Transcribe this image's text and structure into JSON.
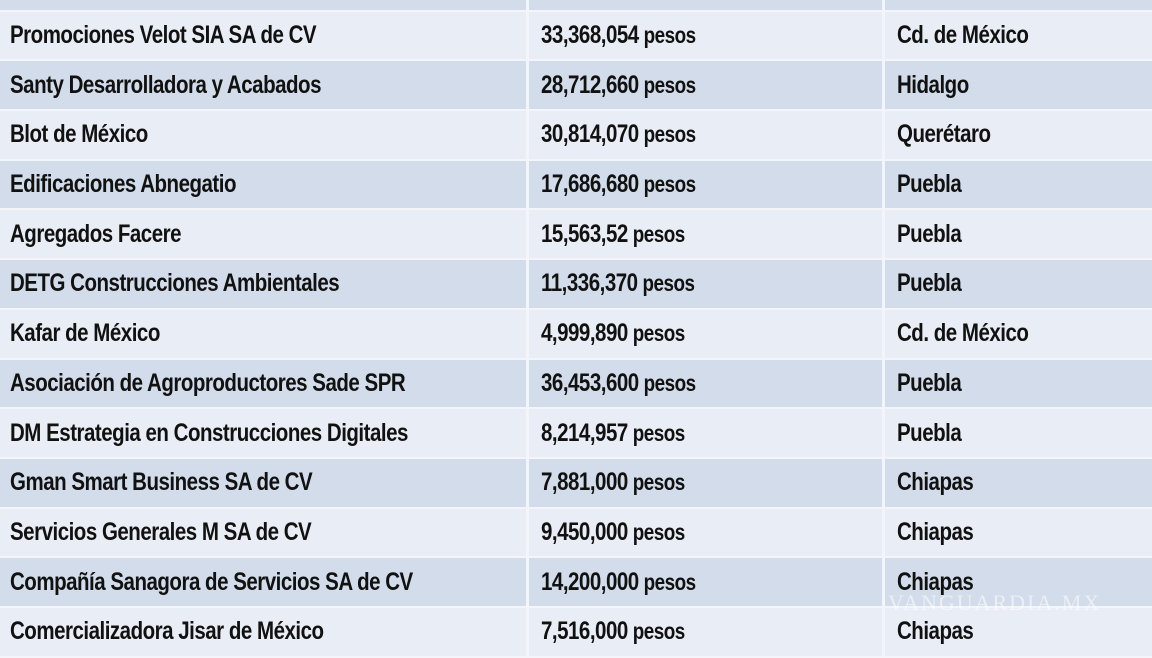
{
  "table": {
    "partial_top_row": {
      "company": "",
      "amount": "",
      "state": ""
    },
    "rows": [
      {
        "company": "Promociones Velot SIA SA de CV",
        "amount": "33,368,054",
        "unit": "pesos",
        "state": "Cd. de México"
      },
      {
        "company": "Santy Desarrolladora y Acabados",
        "amount": "28,712,660",
        "unit": "pesos",
        "state": "Hidalgo"
      },
      {
        "company": "Blot de México",
        "amount": "30,814,070",
        "unit": "pesos",
        "state": "Querétaro"
      },
      {
        "company": "Edificaciones Abnegatio",
        "amount": "17,686,680",
        "unit": "pesos",
        "state": "Puebla"
      },
      {
        "company": "Agregados Facere",
        "amount": "15,563,52",
        "unit": "pesos",
        "state": "Puebla"
      },
      {
        "company": "DETG Construcciones Ambientales",
        "amount": "11,336,370",
        "unit": "pesos",
        "state": "Puebla"
      },
      {
        "company": "Kafar de México",
        "amount": "4,999,890",
        "unit": "pesos",
        "state": "Cd. de México"
      },
      {
        "company": "Asociación de Agroproductores Sade SPR",
        "amount": "36,453,600",
        "unit": "pesos",
        "state": "Puebla"
      },
      {
        "company": "DM Estrategia en Construcciones Digitales",
        "amount": "8,214,957",
        "unit": "pesos",
        "state": "Puebla"
      },
      {
        "company": "Gman Smart Business SA de CV",
        "amount": "7,881,000",
        "unit": "pesos",
        "state": "Chiapas"
      },
      {
        "company": "Servicios Generales M SA de CV",
        "amount": "9,450,000",
        "unit": "pesos",
        "state": "Chiapas"
      },
      {
        "company": "Compañía Sanagora de Servicios SA de CV",
        "amount": "14,200,000",
        "unit": "pesos",
        "state": "Chiapas"
      },
      {
        "company": "Comercializadora Jisar de México",
        "amount": "7,516,000",
        "unit": "pesos",
        "state": "Chiapas"
      }
    ]
  },
  "watermark": "VANGUARDIA.MX",
  "colors": {
    "row_light": "#e9edf5",
    "row_dark": "#d3dcea",
    "divider": "#f3f5fa",
    "text": "#111111"
  }
}
